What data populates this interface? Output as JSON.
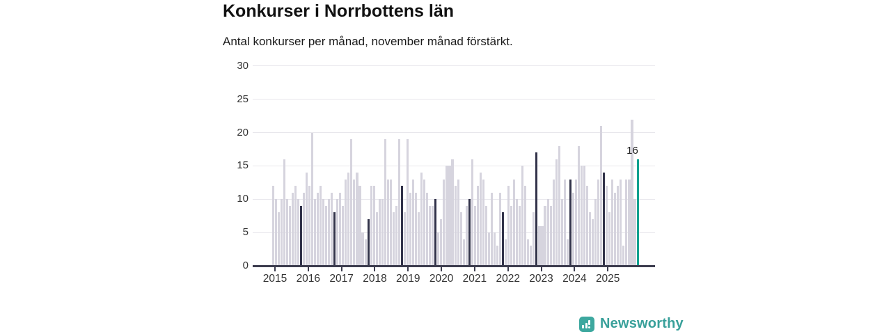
{
  "header": {
    "title": "Konkurser i Norrbottens län",
    "subtitle": "Antal konkurser per månad, november månad förstärkt."
  },
  "chart_data": {
    "type": "bar",
    "title": "Konkurser i Norrbottens län",
    "subtitle": "Antal konkurser per månad, november månad förstärkt.",
    "ylim": [
      0,
      30
    ],
    "y_ticks": [
      0,
      5,
      10,
      15,
      20,
      25,
      30
    ],
    "x_tick_labels": [
      "2015",
      "2016",
      "2017",
      "2018",
      "2019",
      "2020",
      "2021",
      "2022",
      "2023",
      "2024",
      "2025"
    ],
    "grid": "horizontal",
    "highlighted_month": "november",
    "last_value_label": "16",
    "series": [
      {
        "year": "2015",
        "values": [
          12,
          10,
          8,
          10,
          16,
          10,
          9,
          11,
          12,
          10,
          9,
          11
        ]
      },
      {
        "year": "2016",
        "values": [
          14,
          12,
          20,
          10,
          11,
          12,
          10,
          9,
          10,
          11,
          8,
          10
        ]
      },
      {
        "year": "2017",
        "values": [
          11,
          9,
          13,
          14,
          19,
          13,
          14,
          12,
          5,
          4,
          7,
          12
        ]
      },
      {
        "year": "2018",
        "values": [
          12,
          8,
          10,
          10,
          19,
          13,
          13,
          8,
          9,
          19,
          12,
          8
        ]
      },
      {
        "year": "2019",
        "values": [
          19,
          11,
          13,
          11,
          8,
          14,
          13,
          11,
          9,
          9,
          10,
          5
        ]
      },
      {
        "year": "2020",
        "values": [
          7,
          13,
          15,
          15,
          16,
          12,
          13,
          8,
          4,
          9,
          10,
          16
        ]
      },
      {
        "year": "2021",
        "values": [
          9,
          12,
          14,
          13,
          9,
          5,
          11,
          5,
          3,
          11,
          8,
          4
        ]
      },
      {
        "year": "2022",
        "values": [
          12,
          9,
          13,
          10,
          9,
          15,
          12,
          4,
          3,
          8,
          17,
          6
        ]
      },
      {
        "year": "2023",
        "values": [
          6,
          9,
          10,
          9,
          13,
          16,
          18,
          10,
          13,
          4,
          13,
          11
        ]
      },
      {
        "year": "2024",
        "values": [
          13,
          18,
          15,
          15,
          12,
          8,
          7,
          10,
          13,
          21,
          14,
          12
        ]
      },
      {
        "year": "2025",
        "values": [
          8,
          13,
          11,
          12,
          13,
          3,
          13,
          13,
          22,
          10,
          16
        ]
      }
    ],
    "colors": {
      "bar": "#d6d4de",
      "november_bar": "#32334a",
      "current_bar": "#00a18f"
    }
  },
  "footer": {
    "brand": "Newsworthy",
    "brand_color": "#38a09a"
  }
}
